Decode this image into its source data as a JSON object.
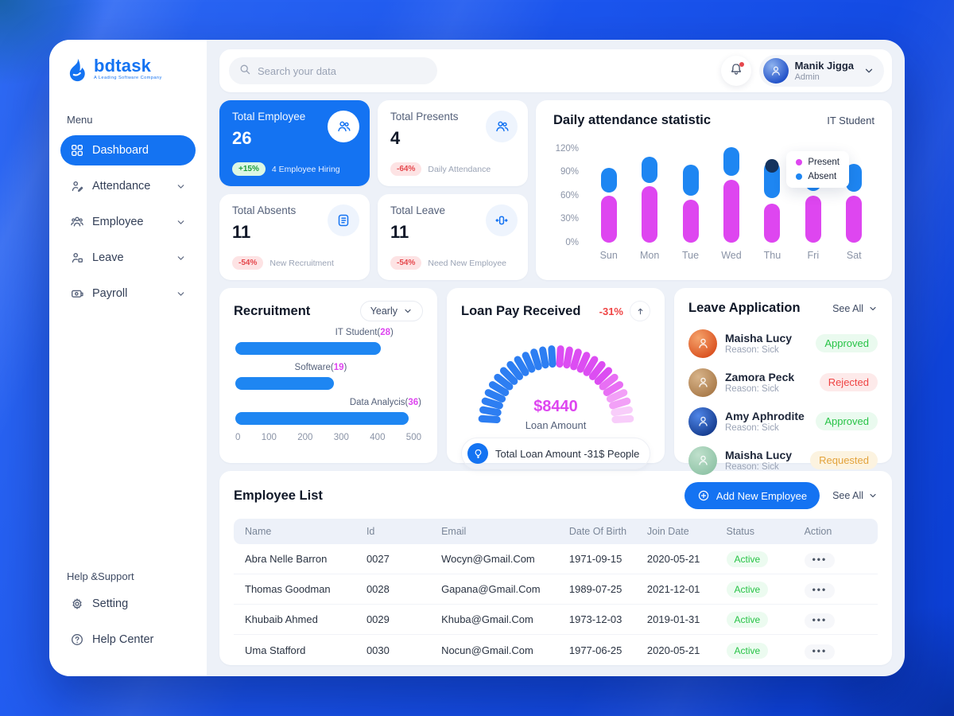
{
  "colors": {
    "primary": "#1473f2",
    "bar_blue": "#1e86f2",
    "magenta": "#de46f0",
    "marker_navy": "#15335e",
    "positive_green": "#27c346",
    "negative_red": "#e5484d",
    "warning_amber": "#e3a33c"
  },
  "app": {
    "logo_text": "bdtask",
    "logo_tagline": "A Leading Software Company"
  },
  "sidebar": {
    "menu_label": "Menu",
    "items": [
      {
        "label": "Dashboard",
        "icon": "dashboard-icon",
        "active": true,
        "chevron": false
      },
      {
        "label": "Attendance",
        "icon": "attendance-icon",
        "active": false,
        "chevron": true
      },
      {
        "label": "Employee",
        "icon": "employee-icon",
        "active": false,
        "chevron": true
      },
      {
        "label": "Leave",
        "icon": "leave-icon",
        "active": false,
        "chevron": true
      },
      {
        "label": "Payroll",
        "icon": "payroll-icon",
        "active": false,
        "chevron": true
      }
    ],
    "support_label": "Help &Support",
    "support_items": [
      {
        "label": "Setting",
        "icon": "setting-icon"
      },
      {
        "label": "Help Center",
        "icon": "help-icon"
      }
    ]
  },
  "topbar": {
    "search_placeholder": "Search your data",
    "user_name": "Manik Jigga",
    "user_role": "Admin"
  },
  "stat_cards": [
    {
      "title": "Total Employee",
      "value": "26",
      "badge": "+15%",
      "badge_type": "positive",
      "description": "4 Employee Hiring",
      "highlight": true,
      "icon": "users-icon"
    },
    {
      "title": "Total Presents",
      "value": "4",
      "badge": "-64%",
      "badge_type": "negative",
      "description": "Daily Attendance",
      "highlight": false,
      "icon": "users-icon"
    },
    {
      "title": "Total Absents",
      "value": "11",
      "badge": "-54%",
      "badge_type": "negative",
      "description": "New Recruitment",
      "highlight": false,
      "icon": "list-icon"
    },
    {
      "title": "Total Leave",
      "value": "11",
      "badge": "-54%",
      "badge_type": "negative",
      "description": "Need New Employee",
      "highlight": false,
      "icon": "move-horizontal-icon"
    }
  ],
  "chart_data": [
    {
      "id": "daily_attendance",
      "type": "bar",
      "title": "Daily attendance statistic",
      "subtitle": "IT Student",
      "categories": [
        "Sun",
        "Mon",
        "Tue",
        "Wed",
        "Thu",
        "Fri",
        "Sat"
      ],
      "ylim": [
        0,
        120
      ],
      "yticks": [
        0,
        30,
        60,
        90,
        120
      ],
      "ytick_suffix": "%",
      "grid": false,
      "legend": {
        "position": "float-top-right",
        "entries": [
          "Present",
          "Absent"
        ]
      },
      "series": [
        {
          "name": "Present",
          "color": "#de46f0",
          "ranges": [
            [
              0,
              60
            ],
            [
              0,
              72
            ],
            [
              0,
              55
            ],
            [
              0,
              80
            ],
            [
              0,
              50
            ],
            [
              0,
              60
            ],
            [
              0,
              60
            ]
          ]
        },
        {
          "name": "Absent",
          "color": "#1e86f2",
          "ranges": [
            [
              64,
              96
            ],
            [
              76,
              110
            ],
            [
              60,
              100
            ],
            [
              85,
              122
            ],
            [
              57,
              104
            ],
            [
              66,
              90
            ],
            [
              65,
              101
            ]
          ]
        }
      ],
      "marker": {
        "category": "Thu",
        "series": "Absent",
        "color": "#15335e"
      }
    },
    {
      "id": "recruitment",
      "type": "bar-horizontal",
      "title": "Recruitment",
      "filter_label": "Yearly",
      "bars": [
        {
          "label": "IT Student",
          "count": 28,
          "axis_value": 390
        },
        {
          "label": "Software",
          "count": 19,
          "axis_value": 265
        },
        {
          "label": "Data Analycis",
          "count": 36,
          "axis_value": 465
        }
      ],
      "xlim": [
        0,
        500
      ],
      "xticks": [
        0,
        100,
        200,
        300,
        400,
        500
      ],
      "bar_color": "#1e86f2",
      "count_color": "#de46f0"
    },
    {
      "id": "loan_gauge",
      "type": "gauge",
      "title": "Loan Pay Received",
      "change": "-31%",
      "center_value": "$8440",
      "center_label": "Loan Amount",
      "footer_note": "Total Loan Amount -31$ People",
      "segments": 26,
      "segment_colors": {
        "blue": "#2d7ef2",
        "blue_count": 13,
        "magenta": "#dc4df2",
        "fade": [
          "#e86ff4",
          "#f2a0f7",
          "#f8cdfa"
        ]
      }
    }
  ],
  "leave_panel": {
    "title": "Leave Application",
    "see_all": "See All",
    "items": [
      {
        "name": "Maisha Lucy",
        "reason": "Reason: Sick",
        "status": "Approved",
        "status_type": "approved",
        "avatar_from": "#f5a36b",
        "avatar_to": "#d94f1e"
      },
      {
        "name": "Zamora Peck",
        "reason": "Reason: Sick",
        "status": "Rejected",
        "status_type": "rejected",
        "avatar_from": "#d8b48a",
        "avatar_to": "#a87948"
      },
      {
        "name": "Amy Aphrodite",
        "reason": "Reason: Sick",
        "status": "Approved",
        "status_type": "approved",
        "avatar_from": "#4f86e8",
        "avatar_to": "#143a8c"
      },
      {
        "name": "Maisha Lucy",
        "reason": "Reason: Sick",
        "status": "Requested",
        "status_type": "requested",
        "avatar_from": "#bfe0cc",
        "avatar_to": "#8fc3a6"
      }
    ]
  },
  "employee_list": {
    "title": "Employee List",
    "add_button": "Add New Employee",
    "see_all": "See All",
    "columns": [
      "Name",
      "Id",
      "Email",
      "Date Of Birth",
      "Join Date",
      "Status",
      "Action"
    ],
    "rows": [
      {
        "name": "Abra Nelle Barron",
        "id": "0027",
        "email": "Wocyn@Gmail.Com",
        "dob": "1971-09-15",
        "join_date": "2020-05-21",
        "status": "Active"
      },
      {
        "name": "Thomas Goodman",
        "id": "0028",
        "email": "Gapana@Gmail.Com",
        "dob": "1989-07-25",
        "join_date": "2021-12-01",
        "status": "Active"
      },
      {
        "name": "Khubaib Ahmed",
        "id": "0029",
        "email": "Khuba@Gmail.Com",
        "dob": "1973-12-03",
        "join_date": "2019-01-31",
        "status": "Active"
      },
      {
        "name": "Uma Stafford",
        "id": "0030",
        "email": "Nocun@Gmail.Com",
        "dob": "1977-06-25",
        "join_date": "2020-05-21",
        "status": "Active"
      }
    ],
    "action_symbol": "•••"
  }
}
